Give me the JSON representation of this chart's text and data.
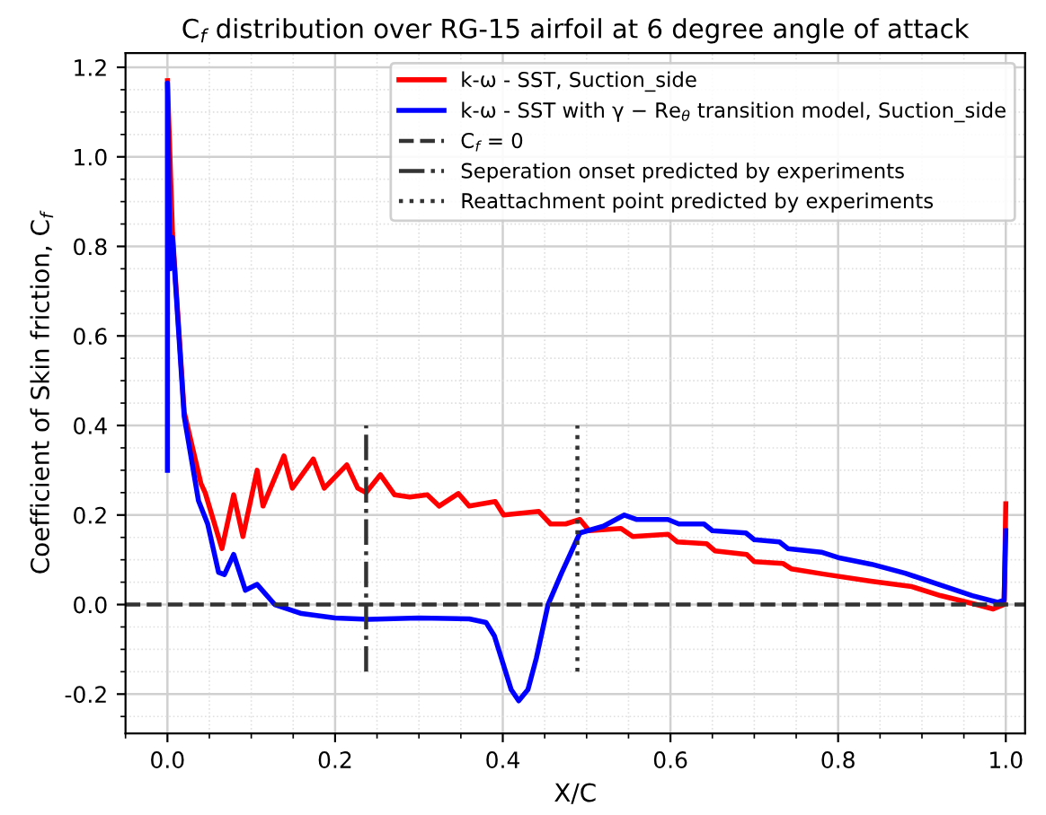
{
  "chart_data": {
    "type": "line",
    "title": "C$_{f}$ distribution over RG-15 airfoil at 6 degree angle of attack",
    "xlabel": "X/C",
    "ylabel": "Coefficient of Skin friction, C$_{f}$",
    "xlim": [
      -0.05,
      1.023
    ],
    "ylim": [
      -0.288,
      1.232
    ],
    "xticks": [
      {
        "value": 0,
        "label": "0.0"
      },
      0.2,
      0.4,
      0.6,
      0.8,
      {
        "value": 1,
        "label": "1.0"
      }
    ],
    "yticks": [
      -0.2,
      {
        "value": 0,
        "label": "0.0"
      },
      0.2,
      0.4,
      0.6,
      0.8,
      {
        "value": 1,
        "label": "1.0"
      },
      1.2
    ],
    "grid": true,
    "legend": "top right",
    "line_style": "solid",
    "marker": "none",
    "series": [
      {
        "name": "k-ω - SST, Suction_side",
        "color": "#ff0000",
        "x": [
          0.0,
          0.006,
          0.02,
          0.04,
          0.045,
          0.065,
          0.079,
          0.09,
          0.107,
          0.114,
          0.139,
          0.149,
          0.174,
          0.187,
          0.214,
          0.227,
          0.237,
          0.254,
          0.271,
          0.289,
          0.31,
          0.324,
          0.347,
          0.36,
          0.391,
          0.401,
          0.443,
          0.457,
          0.475,
          0.492,
          0.503,
          0.541,
          0.555,
          0.597,
          0.608,
          0.643,
          0.653,
          0.691,
          0.7,
          0.734,
          0.744,
          0.783,
          0.839,
          0.888,
          0.922,
          0.965,
          0.985,
          0.998,
          1.0
        ],
        "values": [
          1.17,
          0.83,
          0.43,
          0.27,
          0.25,
          0.125,
          0.245,
          0.152,
          0.3,
          0.22,
          0.332,
          0.26,
          0.325,
          0.26,
          0.312,
          0.26,
          0.25,
          0.29,
          0.245,
          0.24,
          0.245,
          0.22,
          0.248,
          0.22,
          0.23,
          0.2,
          0.208,
          0.18,
          0.18,
          0.19,
          0.165,
          0.17,
          0.152,
          0.157,
          0.14,
          0.136,
          0.12,
          0.112,
          0.096,
          0.092,
          0.08,
          0.068,
          0.052,
          0.04,
          0.02,
          0.0,
          -0.01,
          0.0,
          0.225
        ]
      },
      {
        "name": "k-ω - SST with γ − Re$_{θ}$ transition model, Suction_side",
        "color": "#0000ff",
        "x": [
          0.0,
          0.0,
          0.003,
          0.006,
          0.02,
          0.037,
          0.048,
          0.061,
          0.068,
          0.079,
          0.093,
          0.107,
          0.128,
          0.16,
          0.2,
          0.24,
          0.3,
          0.36,
          0.38,
          0.39,
          0.4,
          0.41,
          0.419,
          0.43,
          0.44,
          0.454,
          0.47,
          0.492,
          0.52,
          0.545,
          0.56,
          0.597,
          0.61,
          0.64,
          0.65,
          0.69,
          0.7,
          0.73,
          0.74,
          0.78,
          0.8,
          0.84,
          0.88,
          0.92,
          0.96,
          0.99,
          0.998,
          1.0
        ],
        "values": [
          0.3,
          1.165,
          0.75,
          0.82,
          0.42,
          0.232,
          0.18,
          0.072,
          0.067,
          0.112,
          0.032,
          0.045,
          0.0,
          -0.02,
          -0.03,
          -0.033,
          -0.03,
          -0.032,
          -0.04,
          -0.07,
          -0.13,
          -0.19,
          -0.215,
          -0.19,
          -0.12,
          0.0,
          0.07,
          0.16,
          0.175,
          0.2,
          0.19,
          0.19,
          0.18,
          0.18,
          0.165,
          0.16,
          0.145,
          0.14,
          0.125,
          0.117,
          0.105,
          0.09,
          0.07,
          0.045,
          0.02,
          0.005,
          0.01,
          0.165
        ]
      },
      {
        "name": "Seperation onset predicted by experiments",
        "color": "#333333",
        "line_style": "dashdot",
        "x": [
          0.237,
          0.237
        ],
        "values": [
          -0.15,
          0.4
        ]
      },
      {
        "name": "Reattachment point predicted by experiments",
        "color": "#333333",
        "line_style": "dotted",
        "x": [
          0.489,
          0.489
        ],
        "values": [
          -0.15,
          0.4
        ]
      }
    ],
    "ref_lines": [
      {
        "axis": "y",
        "value": 0.0,
        "label": "C$_{f}$ = 0",
        "color": "#333333",
        "line_style": "dashed"
      }
    ]
  }
}
